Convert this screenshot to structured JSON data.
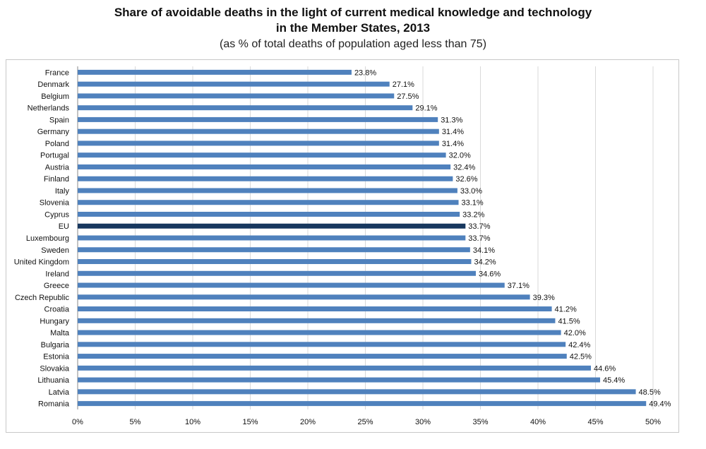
{
  "chart_data": {
    "type": "bar",
    "orientation": "horizontal",
    "title": "Share of avoidable deaths in the light of current medical knowledge and technology in the Member States, 2013",
    "title_lines": [
      "Share of avoidable deaths in the light of current medical knowledge and technology",
      "in the Member States, 2013"
    ],
    "subtitle": "(as % of total deaths of population aged less than 75)",
    "categories": [
      "France",
      "Denmark",
      "Belgium",
      "Netherlands",
      "Spain",
      "Germany",
      "Poland",
      "Portugal",
      "Austria",
      "Finland",
      "Italy",
      "Slovenia",
      "Cyprus",
      "EU",
      "Luxembourg",
      "Sweden",
      "United Kingdom",
      "Ireland",
      "Greece",
      "Czech Republic",
      "Croatia",
      "Hungary",
      "Malta",
      "Bulgaria",
      "Estonia",
      "Slovakia",
      "Lithuania",
      "Latvia",
      "Romania"
    ],
    "values": [
      23.8,
      27.1,
      27.5,
      29.1,
      31.3,
      31.4,
      31.4,
      32.0,
      32.4,
      32.6,
      33.0,
      33.1,
      33.2,
      33.7,
      33.7,
      34.1,
      34.2,
      34.6,
      37.1,
      39.3,
      41.2,
      41.5,
      42.0,
      42.4,
      42.5,
      44.6,
      45.4,
      48.5,
      49.4
    ],
    "data_labels": [
      "23.8%",
      "27.1%",
      "27.5%",
      "29.1%",
      "31.3%",
      "31.4%",
      "31.4%",
      "32.0%",
      "32.4%",
      "32.6%",
      "33.0%",
      "33.1%",
      "33.2%",
      "33.7%",
      "33.7%",
      "34.1%",
      "34.2%",
      "34.6%",
      "37.1%",
      "39.3%",
      "41.2%",
      "41.5%",
      "42.0%",
      "42.4%",
      "42.5%",
      "44.6%",
      "45.4%",
      "48.5%",
      "49.4%"
    ],
    "highlight_category": "EU",
    "xlim": [
      0,
      50
    ],
    "x_ticks": [
      "0%",
      "5%",
      "10%",
      "15%",
      "20%",
      "25%",
      "30%",
      "35%",
      "40%",
      "45%",
      "50%"
    ],
    "grid": true,
    "legend": "none",
    "xlabel": "",
    "ylabel": "",
    "colors": {
      "bar": "#4f81bd",
      "highlight": "#17375e",
      "grid": "#d9d9d9"
    }
  }
}
